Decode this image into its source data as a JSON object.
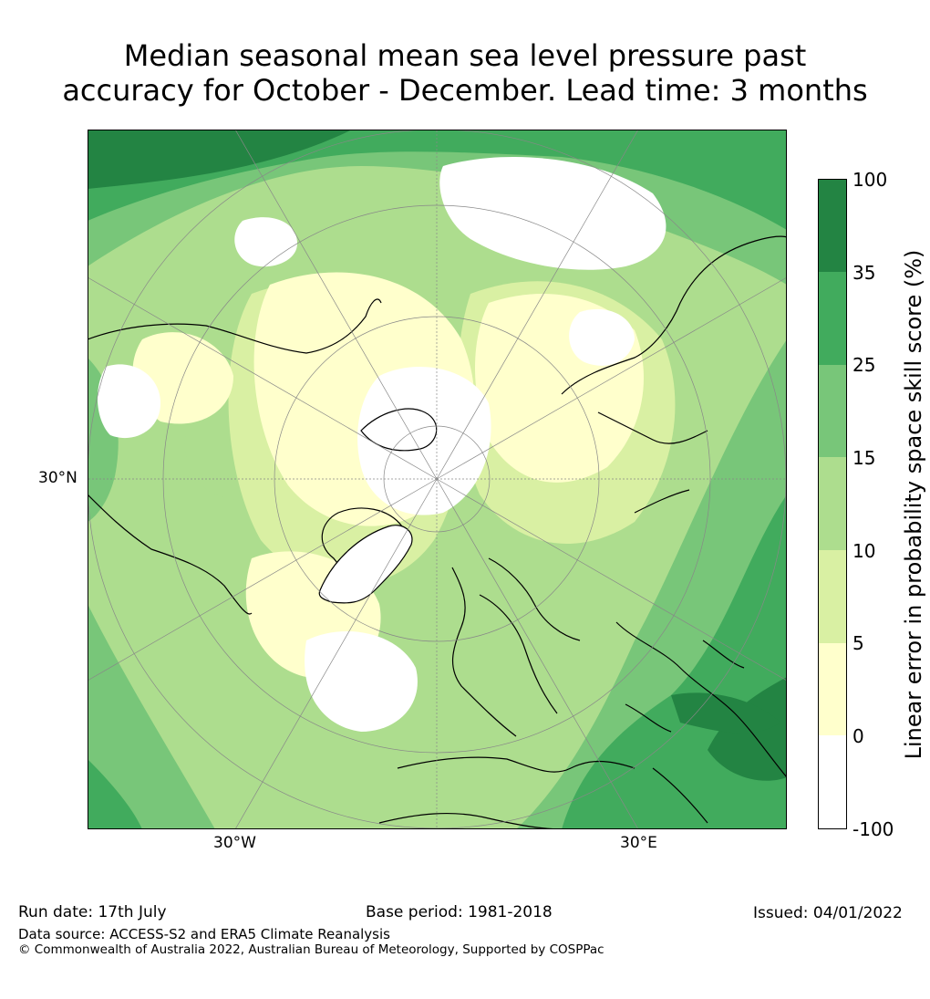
{
  "title": {
    "line1": "Median seasonal mean sea level pressure past",
    "line2": "accuracy for October - December. Lead time: 3 months"
  },
  "map": {
    "projection": "north-polar-stereographic",
    "gridline_labels": {
      "lat": "30°N",
      "lon_west": "30°W",
      "lon_east": "30°E"
    }
  },
  "colorbar": {
    "label": "Linear error in probability space skill score (%)",
    "ticks": [
      "100",
      "35",
      "25",
      "15",
      "10",
      "5",
      "0",
      "-100"
    ],
    "bins": [
      {
        "from": -100,
        "to": 0,
        "color": "#ffffff"
      },
      {
        "from": 0,
        "to": 5,
        "color": "#ffffcc"
      },
      {
        "from": 5,
        "to": 10,
        "color": "#d9f0a3"
      },
      {
        "from": 10,
        "to": 15,
        "color": "#addd8e"
      },
      {
        "from": 15,
        "to": 25,
        "color": "#78c679"
      },
      {
        "from": 25,
        "to": 35,
        "color": "#41ab5d"
      },
      {
        "from": 35,
        "to": 100,
        "color": "#238443"
      }
    ]
  },
  "footer": {
    "run_date": "Run date: 17th July",
    "base_period": "Base period: 1981-2018",
    "issued": "Issued: 04/01/2022",
    "data_source": "Data source: ACCESS-S2 and ERA5 Climate Reanalysis",
    "copyright": "© Commonwealth of Australia 2022, Australian Bureau of Meteorology, Supported by COSPPac"
  }
}
